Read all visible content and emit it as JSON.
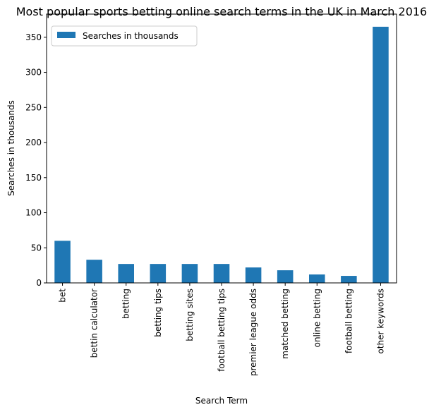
{
  "chart_data": {
    "type": "bar",
    "title": "Most popular sports betting online search terms in the UK in March 2016",
    "xlabel": "Search Term",
    "ylabel": "Searches in thousands",
    "categories": [
      "bet",
      "bettin calculator",
      "betting",
      "betting tips",
      "betting sites",
      "football betting tips",
      "premier league odds",
      "matched betting",
      "online betting",
      "football betting",
      "other keywords"
    ],
    "series": [
      {
        "name": "Searches in thousands",
        "values": [
          60,
          33,
          27,
          27,
          27,
          27,
          22,
          18,
          12,
          10,
          365
        ],
        "color": "#1f77b4"
      }
    ],
    "ylim": [
      0,
      383
    ],
    "yticks": [
      0,
      50,
      100,
      150,
      200,
      250,
      300,
      350
    ],
    "grid": false,
    "legend_position": "top-left"
  }
}
